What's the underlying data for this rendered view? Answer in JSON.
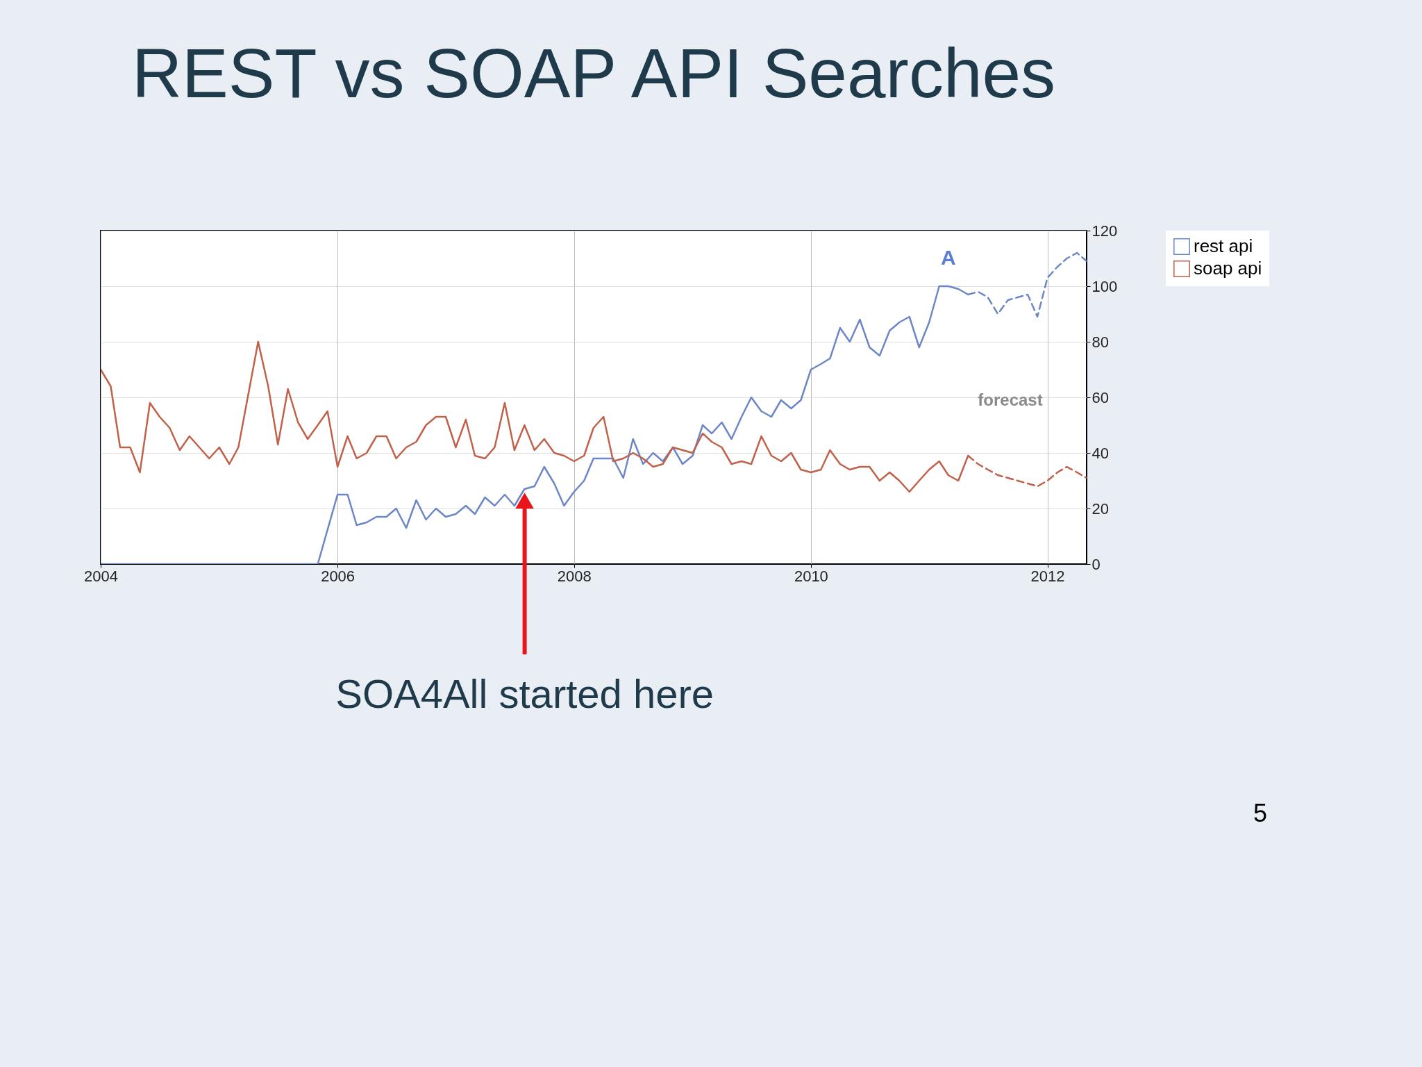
{
  "chart_data": {
    "type": "line",
    "title": "REST vs SOAP API Searches",
    "xlim": [
      "2004-01",
      "2012-05"
    ],
    "xticks": [
      "2004",
      "2006",
      "2008",
      "2010",
      "2012"
    ],
    "ylim": [
      0,
      120
    ],
    "yticks": [
      0,
      20,
      40,
      60,
      80,
      100,
      120
    ],
    "grid": true,
    "legend": "top right",
    "series": [
      {
        "name": "rest api",
        "color": "#6d87c6",
        "x": [
          "2004-01",
          "2005-11",
          "2006-01",
          "2006-02",
          "2006-03",
          "2006-04",
          "2006-05",
          "2006-06",
          "2006-07",
          "2006-08",
          "2006-09",
          "2006-10",
          "2006-11",
          "2006-12",
          "2007-01",
          "2007-02",
          "2007-03",
          "2007-04",
          "2007-05",
          "2007-06",
          "2007-07",
          "2007-08",
          "2007-09",
          "2007-10",
          "2007-11",
          "2007-12",
          "2008-01",
          "2008-02",
          "2008-03",
          "2008-04",
          "2008-05",
          "2008-06",
          "2008-07",
          "2008-08",
          "2008-09",
          "2008-10",
          "2008-11",
          "2008-12",
          "2009-01",
          "2009-02",
          "2009-03",
          "2009-04",
          "2009-05",
          "2009-06",
          "2009-07",
          "2009-08",
          "2009-09",
          "2009-10",
          "2009-11",
          "2009-12",
          "2010-01",
          "2010-02",
          "2010-03",
          "2010-04",
          "2010-05",
          "2010-06",
          "2010-07",
          "2010-08",
          "2010-09",
          "2010-10",
          "2010-11",
          "2010-12",
          "2011-01",
          "2011-02",
          "2011-03",
          "2011-04",
          "2011-05"
        ],
        "values": [
          0,
          0,
          25,
          25,
          14,
          15,
          17,
          17,
          20,
          13,
          23,
          16,
          20,
          17,
          18,
          21,
          18,
          24,
          21,
          25,
          21,
          27,
          28,
          35,
          29,
          21,
          26,
          30,
          38,
          38,
          38,
          31,
          45,
          36,
          40,
          37,
          42,
          36,
          39,
          50,
          47,
          51,
          45,
          53,
          60,
          55,
          53,
          59,
          56,
          59,
          70,
          72,
          74,
          85,
          80,
          88,
          78,
          75,
          84,
          87,
          89,
          78,
          87,
          100,
          100,
          99,
          97
        ]
      },
      {
        "name": "soap api",
        "color": "#c0614a",
        "x": [
          "2004-01",
          "2004-02",
          "2004-03",
          "2004-04",
          "2004-05",
          "2004-06",
          "2004-07",
          "2004-08",
          "2004-09",
          "2004-10",
          "2004-12",
          "2005-01",
          "2005-02",
          "2005-03",
          "2005-05",
          "2005-06",
          "2005-07",
          "2005-08",
          "2005-09",
          "2005-10",
          "2005-11",
          "2005-12",
          "2006-01",
          "2006-02",
          "2006-03",
          "2006-04",
          "2006-05",
          "2006-06",
          "2006-07",
          "2006-08",
          "2006-09",
          "2006-10",
          "2006-11",
          "2006-12",
          "2007-01",
          "2007-02",
          "2007-03",
          "2007-04",
          "2007-05",
          "2007-06",
          "2007-07",
          "2007-08",
          "2007-09",
          "2007-10",
          "2007-11",
          "2007-12",
          "2008-01",
          "2008-02",
          "2008-03",
          "2008-04",
          "2008-05",
          "2008-06",
          "2008-07",
          "2008-08",
          "2008-09",
          "2008-10",
          "2008-11",
          "2008-12",
          "2009-01",
          "2009-02",
          "2009-03",
          "2009-04",
          "2009-05",
          "2009-06",
          "2009-07",
          "2009-08",
          "2009-09",
          "2009-10",
          "2009-11",
          "2009-12",
          "2010-01",
          "2010-02",
          "2010-03",
          "2010-04",
          "2010-05",
          "2010-06",
          "2010-07",
          "2010-08",
          "2010-09",
          "2010-10",
          "2010-11",
          "2010-12",
          "2011-01",
          "2011-02",
          "2011-03",
          "2011-04",
          "2011-05"
        ],
        "values": [
          70,
          64,
          42,
          42,
          33,
          58,
          53,
          49,
          41,
          46,
          38,
          42,
          36,
          42,
          80,
          64,
          43,
          63,
          51,
          45,
          50,
          55,
          35,
          46,
          38,
          40,
          46,
          46,
          38,
          42,
          44,
          50,
          53,
          53,
          42,
          52,
          39,
          38,
          42,
          58,
          41,
          50,
          41,
          45,
          40,
          39,
          37,
          39,
          49,
          53,
          37,
          38,
          40,
          38,
          35,
          36,
          42,
          41,
          40,
          47,
          44,
          42,
          36,
          37,
          36,
          46,
          39,
          37,
          40,
          34,
          33,
          34,
          41,
          36,
          34,
          35,
          35,
          30,
          33,
          30,
          26,
          30,
          34,
          37,
          32,
          30,
          39
        ]
      },
      {
        "color": "#6d87c6",
        "line_style": "dashed",
        "x": [
          "2011-05",
          "2011-06",
          "2011-07",
          "2011-08",
          "2011-09",
          "2011-10",
          "2011-11",
          "2011-12",
          "2012-01",
          "2012-02",
          "2012-03",
          "2012-04",
          "2012-05"
        ],
        "values": [
          97,
          98,
          96,
          90,
          95,
          96,
          97,
          89,
          103,
          107,
          110,
          112,
          109
        ]
      },
      {
        "color": "#c0614a",
        "line_style": "dashed",
        "x": [
          "2011-05",
          "2011-06",
          "2011-07",
          "2011-08",
          "2011-09",
          "2011-10",
          "2011-11",
          "2011-12",
          "2012-01",
          "2012-02",
          "2012-03",
          "2012-04",
          "2012-05"
        ],
        "values": [
          39,
          36,
          34,
          32,
          31,
          30,
          29,
          28,
          30,
          33,
          35,
          33,
          31
        ]
      }
    ],
    "annotations": [
      {
        "text": "A",
        "x": "2011-03",
        "y": 100
      },
      "forecast",
      "SOA4All started here",
      "5"
    ]
  }
}
